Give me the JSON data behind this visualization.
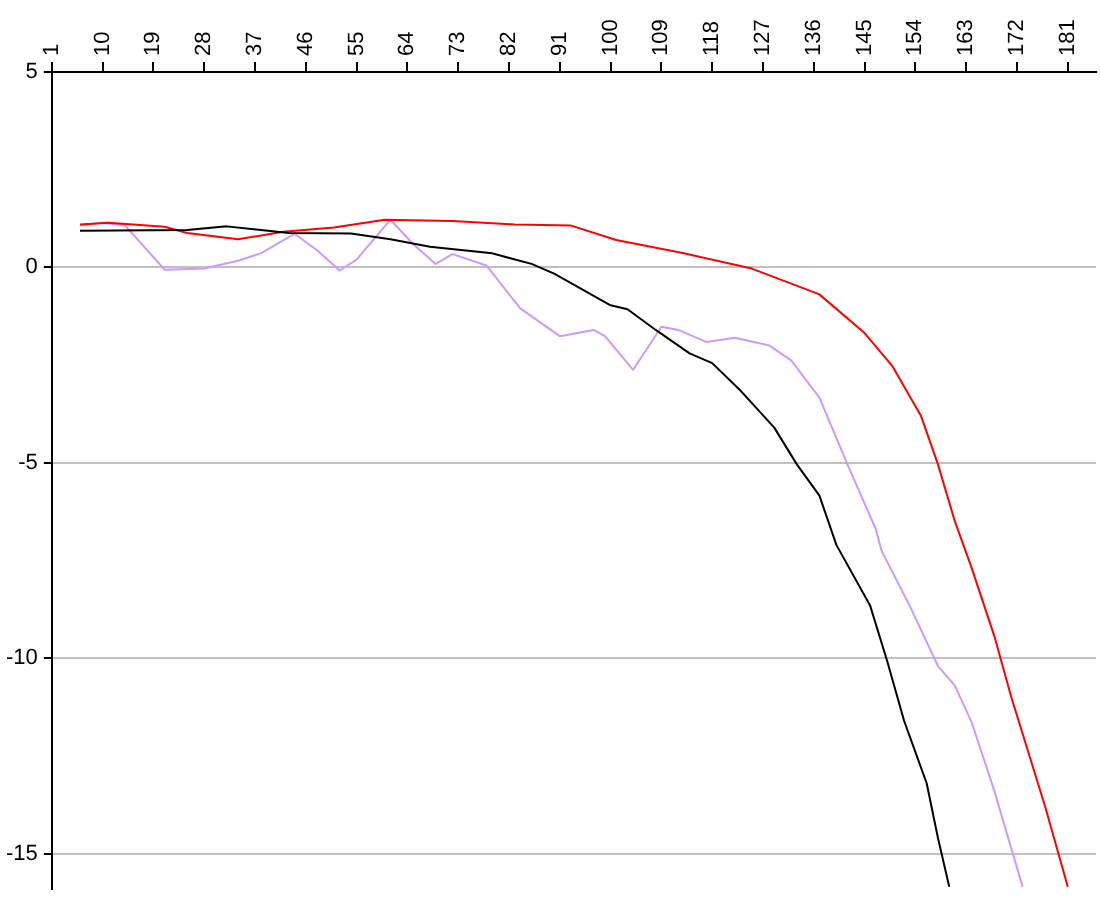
{
  "chart_data": {
    "type": "line",
    "xlim": [
      1,
      186
    ],
    "xticks": [
      1,
      10,
      19,
      28,
      37,
      46,
      55,
      64,
      73,
      82,
      91,
      100,
      109,
      118,
      127,
      136,
      145,
      154,
      163,
      172,
      181
    ],
    "ylim": [
      -15.9,
      5
    ],
    "yticks": [
      -15,
      -10,
      -5,
      0,
      5
    ],
    "grid": "y",
    "legend": false,
    "marker": "none",
    "line_style": "solid",
    "series": [
      {
        "color": "#000000",
        "x": [
          6,
          25,
          32,
          43,
          54,
          61,
          68,
          79,
          86,
          90,
          100,
          103,
          108,
          114,
          118,
          123,
          129,
          133,
          137,
          140,
          146,
          149,
          152,
          156,
          158,
          160
        ],
        "values": [
          0.94,
          0.96,
          1.05,
          0.88,
          0.87,
          0.72,
          0.53,
          0.36,
          0.09,
          -0.16,
          -0.97,
          -1.07,
          -1.6,
          -2.2,
          -2.45,
          -3.15,
          -4.1,
          -5.04,
          -5.84,
          -7.1,
          -8.66,
          -10.07,
          -11.6,
          -13.2,
          -14.6,
          -15.85
        ]
      },
      {
        "color": "#ff0000",
        "x": [
          6,
          11,
          21,
          25,
          34,
          42,
          51,
          60,
          72,
          83,
          93,
          101,
          113,
          125,
          137,
          145,
          150,
          155,
          158,
          161,
          164,
          168,
          171,
          174,
          177,
          181
        ],
        "values": [
          1.1,
          1.14,
          1.04,
          0.88,
          0.72,
          0.91,
          1.02,
          1.22,
          1.19,
          1.1,
          1.07,
          0.7,
          0.36,
          -0.03,
          -0.69,
          -1.68,
          -2.54,
          -3.8,
          -5.04,
          -6.5,
          -7.7,
          -9.44,
          -11.0,
          -12.4,
          -13.8,
          -15.85
        ]
      },
      {
        "color": "#cc99ff",
        "x": [
          6,
          10,
          14,
          21,
          28,
          34,
          38,
          44,
          48,
          52,
          55,
          61,
          65,
          69,
          72,
          78,
          84,
          91,
          97,
          99,
          104,
          109,
          112,
          117,
          122,
          128,
          132,
          137,
          142,
          147,
          148,
          153,
          158,
          161,
          164,
          168,
          173
        ],
        "values": [
          1.07,
          1.14,
          1.07,
          -0.06,
          -0.03,
          0.17,
          0.36,
          0.86,
          0.44,
          -0.08,
          0.2,
          1.22,
          0.6,
          0.09,
          0.34,
          0.05,
          -1.05,
          -1.76,
          -1.6,
          -1.76,
          -2.62,
          -1.52,
          -1.6,
          -1.91,
          -1.8,
          -1.99,
          -2.38,
          -3.33,
          -5.05,
          -6.7,
          -7.25,
          -8.66,
          -10.2,
          -10.7,
          -11.65,
          -13.4,
          -15.85
        ]
      }
    ]
  }
}
